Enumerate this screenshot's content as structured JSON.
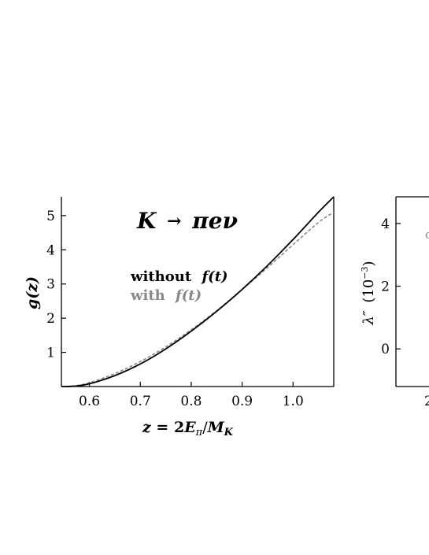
{
  "chart_data": [
    {
      "type": "line",
      "title": "K → πeν",
      "xlabel": "z = 2E_π/M_K",
      "ylabel": "g(z)",
      "xlim": [
        0.545,
        1.08
      ],
      "ylim": [
        0,
        5.55
      ],
      "xticks": [
        0.6,
        0.7,
        0.8,
        0.9,
        1.0
      ],
      "xtick_labels": [
        "0.6",
        "0.7",
        "0.8",
        "0.9",
        "1.0"
      ],
      "yticks": [
        1,
        2,
        3,
        4,
        5
      ],
      "ytick_labels": [
        "1",
        "2",
        "3",
        "4",
        "5"
      ],
      "grid": false,
      "legend": "upper-left",
      "series": [
        {
          "name": "without f(t)",
          "color": "#000000",
          "style": "solid",
          "x": [
            0.545,
            0.57,
            0.6,
            0.65,
            0.7,
            0.75,
            0.8,
            0.85,
            0.9,
            0.95,
            1.0,
            1.05,
            1.08
          ],
          "y": [
            0.0,
            0.01,
            0.08,
            0.32,
            0.66,
            1.1,
            1.62,
            2.2,
            2.84,
            3.54,
            4.3,
            5.1,
            5.55
          ]
        },
        {
          "name": "with f(t)",
          "color": "#888888",
          "style": "dashed",
          "x": [
            0.545,
            0.57,
            0.6,
            0.65,
            0.7,
            0.75,
            0.8,
            0.85,
            0.9,
            0.95,
            1.0,
            1.05,
            1.08
          ],
          "y": [
            0.0,
            0.02,
            0.11,
            0.38,
            0.73,
            1.16,
            1.66,
            2.22,
            2.84,
            3.48,
            4.15,
            4.8,
            5.1
          ]
        }
      ]
    },
    {
      "type": "line",
      "xlabel": "",
      "ylabel": "λ″ (10⁻³)",
      "ylim": [
        -1.2,
        4.85
      ],
      "yticks": [
        0,
        2,
        4
      ],
      "ytick_labels": [
        "0",
        "2",
        "4"
      ],
      "partial": true,
      "series": []
    }
  ],
  "left_panel": {
    "title_K": "K",
    "title_arrow": "→",
    "title_rest": "πeν",
    "legend_without_text": "without",
    "legend_without_math": "f(t)",
    "legend_with_text": "with",
    "legend_with_math": "f(t)",
    "ylabel_g": "g",
    "ylabel_z": "(z)",
    "xlabel_lhs": "z",
    "xlabel_eq": " = ",
    "xlabel_two": "2",
    "xlabel_E": "E",
    "xlabel_pi": "π",
    "xlabel_slash": "/",
    "xlabel_M": "M",
    "xlabel_K": "K"
  },
  "right_panel": {
    "ylabel_lambda": "λ″",
    "ylabel_unit_open": "(10",
    "ylabel_unit_exp": "−3",
    "ylabel_unit_close": ")",
    "partial_tick_left": "2",
    "partial_mark": "c"
  },
  "colors": {
    "without": "#000000",
    "with": "#888888"
  }
}
